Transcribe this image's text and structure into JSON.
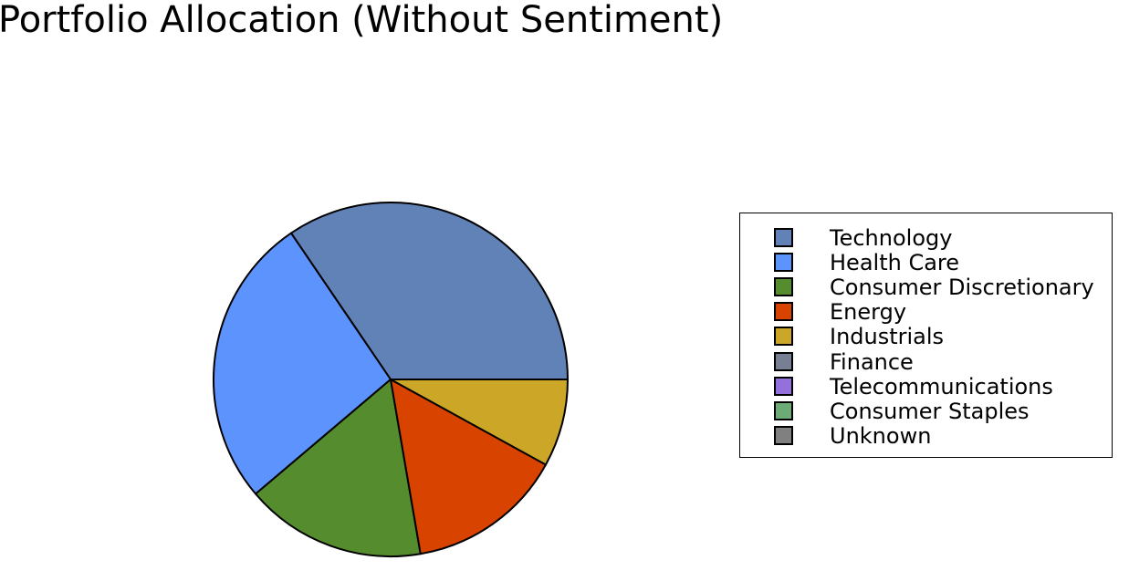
{
  "chart_data": {
    "type": "pie",
    "title": "Portfolio Allocation (Without Sentiment)",
    "legend_position": "right",
    "slices": [
      {
        "label": "Technology",
        "value": 34.5,
        "color": "#6082b6"
      },
      {
        "label": "Health Care",
        "value": 26.7,
        "color": "#5c93fd"
      },
      {
        "label": "Consumer Discretionary",
        "value": 16.5,
        "color": "#548c2e"
      },
      {
        "label": "Energy",
        "value": 14.3,
        "color": "#d94300"
      },
      {
        "label": "Industrials",
        "value": 8.0,
        "color": "#cba627"
      },
      {
        "label": "Finance",
        "value": 0,
        "color": "#777f92"
      },
      {
        "label": "Telecommunications",
        "value": 0,
        "color": "#9370db"
      },
      {
        "label": "Consumer Staples",
        "value": 0,
        "color": "#6cab75"
      },
      {
        "label": "Unknown",
        "value": 0,
        "color": "#808080"
      }
    ]
  }
}
